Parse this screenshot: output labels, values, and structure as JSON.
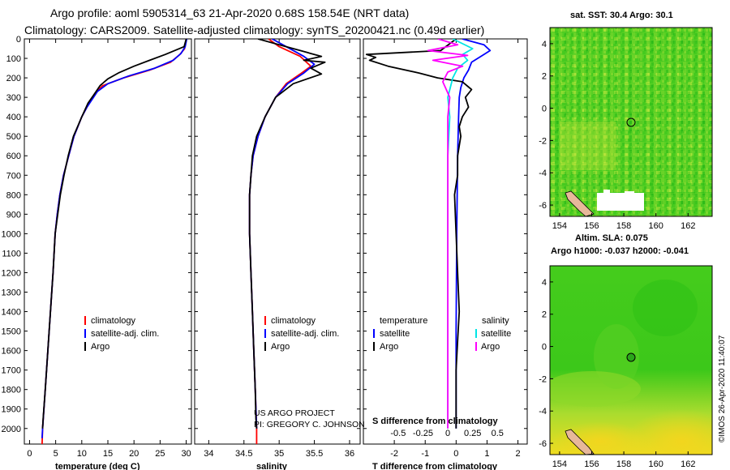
{
  "header": {
    "title_line1": "Argo profile: aoml 5905314_63 21-Apr-2020 0.68S 158.54E (NRT data)",
    "title_line2": "Climatology: CARS2009. Satellite-adjusted climatology: synTS_20200421.nc (0.49d earlier)"
  },
  "colors": {
    "climatology": "#ff0000",
    "satellite_adj": "#0000ff",
    "argo": "#000000",
    "sat_salinity": "#00e5e5",
    "argo_salinity_diff": "#ff00ff",
    "map_green": "#33cc1a",
    "map_yellow": "#f2ee24"
  },
  "chart_data": [
    {
      "id": "temperature",
      "type": "line",
      "xlabel": "temperature (deg C)",
      "ylabel": "",
      "xlim": [
        -1,
        31
      ],
      "ylim": [
        2080,
        0
      ],
      "xticks": [
        0,
        5,
        10,
        15,
        20,
        25,
        30
      ],
      "xtick_labels": [
        "0",
        "5",
        "10",
        "15",
        "20",
        "25",
        "30"
      ],
      "yticks": [
        0,
        100,
        200,
        300,
        400,
        500,
        600,
        700,
        800,
        900,
        1000,
        1100,
        1200,
        1300,
        1400,
        1500,
        1600,
        1700,
        1800,
        1900,
        2000
      ],
      "ytick_labels": [
        "0",
        "100",
        "200",
        "300",
        "400",
        "500",
        "600",
        "700",
        "800",
        "900",
        "1000",
        "1100",
        "1200",
        "1300",
        "1400",
        "1500",
        "1600",
        "1700",
        "1800",
        "1900",
        "2000"
      ],
      "legend": [
        "climatology",
        "satellite-adj. clim.",
        "Argo"
      ],
      "series": [
        {
          "name": "climatology",
          "color": "#ff0000",
          "points": [
            [
              30,
              0
            ],
            [
              29.7,
              50
            ],
            [
              28.8,
              80
            ],
            [
              27,
              120
            ],
            [
              23,
              160
            ],
            [
              18,
              200
            ],
            [
              14,
              240
            ],
            [
              12.5,
              280
            ],
            [
              11,
              350
            ],
            [
              10,
              400
            ],
            [
              8.5,
              500
            ],
            [
              7.5,
              600
            ],
            [
              6.5,
              700
            ],
            [
              5.8,
              800
            ],
            [
              5.3,
              900
            ],
            [
              4.9,
              1000
            ],
            [
              4.5,
              1200
            ],
            [
              4,
              1400
            ],
            [
              3.5,
              1600
            ],
            [
              3,
              1800
            ],
            [
              2.5,
              2000
            ],
            [
              2.4,
              2080
            ]
          ]
        },
        {
          "name": "satellite-adj. clim.",
          "color": "#0000ff",
          "points": [
            [
              30.1,
              0
            ],
            [
              29.8,
              40
            ],
            [
              29,
              75
            ],
            [
              27.5,
              110
            ],
            [
              24,
              150
            ],
            [
              19,
              190
            ],
            [
              15,
              230
            ],
            [
              13,
              270
            ],
            [
              11,
              350
            ],
            [
              10,
              400
            ],
            [
              8.5,
              500
            ],
            [
              7.5,
              600
            ],
            [
              6.5,
              700
            ],
            [
              5.8,
              800
            ],
            [
              5.3,
              900
            ],
            [
              4.9,
              1000
            ],
            [
              4.5,
              1200
            ],
            [
              4,
              1400
            ],
            [
              3.5,
              1600
            ],
            [
              3,
              1800
            ],
            [
              2.5,
              2000
            ],
            [
              2.4,
              2050
            ]
          ]
        },
        {
          "name": "Argo",
          "color": "#000000",
          "points": [
            [
              30,
              0
            ],
            [
              29.6,
              40
            ],
            [
              26,
              80
            ],
            [
              23,
              110
            ],
            [
              20,
              140
            ],
            [
              17,
              175
            ],
            [
              15,
              205
            ],
            [
              13.5,
              240
            ],
            [
              12.5,
              280
            ],
            [
              11.2,
              330
            ],
            [
              10,
              400
            ],
            [
              9.2,
              450
            ],
            [
              8.4,
              500
            ],
            [
              7.4,
              600
            ],
            [
              6.6,
              700
            ],
            [
              5.9,
              800
            ],
            [
              5.4,
              900
            ],
            [
              4.9,
              1000
            ],
            [
              4.5,
              1200
            ],
            [
              4,
              1400
            ],
            [
              3.5,
              1600
            ],
            [
              3,
              1800
            ],
            [
              2.6,
              1950
            ],
            [
              2.5,
              2000
            ]
          ]
        }
      ]
    },
    {
      "id": "salinity",
      "type": "line",
      "xlabel": "salinity",
      "xlim": [
        33.8,
        36.15
      ],
      "ylim": [
        2080,
        0
      ],
      "xticks": [
        34,
        34.5,
        35,
        35.5,
        36
      ],
      "xtick_labels": [
        "34",
        "34.5",
        "35",
        "35.5",
        "36"
      ],
      "legend": [
        "climatology",
        "satellite-adj. clim.",
        "Argo"
      ],
      "annotations": [
        "US ARGO PROJECT",
        "PI: GREGORY C. JOHNSON"
      ],
      "series": [
        {
          "name": "climatology",
          "color": "#ff0000",
          "points": [
            [
              34.85,
              0
            ],
            [
              35,
              40
            ],
            [
              35.3,
              90
            ],
            [
              35.45,
              140
            ],
            [
              35.3,
              180
            ],
            [
              35.1,
              230
            ],
            [
              34.95,
              300
            ],
            [
              34.8,
              400
            ],
            [
              34.7,
              500
            ],
            [
              34.63,
              600
            ],
            [
              34.6,
              700
            ],
            [
              34.58,
              800
            ],
            [
              34.58,
              1000
            ],
            [
              34.6,
              1200
            ],
            [
              34.62,
              1400
            ],
            [
              34.64,
              1600
            ],
            [
              34.66,
              1800
            ],
            [
              34.68,
              2000
            ],
            [
              34.68,
              2080
            ]
          ]
        },
        {
          "name": "satellite-adj. clim.",
          "color": "#0000ff",
          "points": [
            [
              34.9,
              0
            ],
            [
              35.1,
              40
            ],
            [
              35.35,
              90
            ],
            [
              35.5,
              130
            ],
            [
              35.35,
              175
            ],
            [
              35.12,
              230
            ],
            [
              34.95,
              300
            ],
            [
              34.8,
              400
            ],
            [
              34.7,
              500
            ],
            [
              34.63,
              600
            ],
            [
              34.6,
              700
            ],
            [
              34.58,
              800
            ],
            [
              34.58,
              1000
            ],
            [
              34.6,
              1200
            ],
            [
              34.62,
              1400
            ],
            [
              34.64,
              1600
            ],
            [
              34.66,
              1800
            ],
            [
              34.68,
              2000
            ]
          ]
        },
        {
          "name": "Argo",
          "color": "#000000",
          "points": [
            [
              34.7,
              0
            ],
            [
              35.1,
              40
            ],
            [
              35.4,
              70
            ],
            [
              35.6,
              90
            ],
            [
              35.35,
              110
            ],
            [
              35.65,
              120
            ],
            [
              35.45,
              150
            ],
            [
              35.6,
              180
            ],
            [
              35.2,
              230
            ],
            [
              34.95,
              300
            ],
            [
              34.8,
              400
            ],
            [
              34.68,
              500
            ],
            [
              34.62,
              600
            ],
            [
              34.6,
              700
            ],
            [
              34.58,
              800
            ],
            [
              34.58,
              1000
            ],
            [
              34.6,
              1200
            ],
            [
              34.62,
              1400
            ],
            [
              34.64,
              1600
            ],
            [
              34.66,
              1800
            ],
            [
              34.67,
              1950
            ],
            [
              34.68,
              2000
            ]
          ]
        }
      ]
    },
    {
      "id": "differences",
      "type": "line",
      "xlabel": "T difference from climatology",
      "xlim": [
        -3,
        2.3
      ],
      "ylim": [
        2080,
        0
      ],
      "xticks": [
        -2,
        -1,
        0,
        1,
        2
      ],
      "xtick_labels": [
        "-2",
        "-1",
        "0",
        "1",
        "2"
      ],
      "secondary_xaxis": {
        "label": "S difference from climatology",
        "xlim": [
          -0.85,
          0.8
        ],
        "xticks": [
          -0.5,
          -0.25,
          0,
          0.25,
          0.5
        ],
        "xtick_labels": [
          "-0.5",
          "-0.25",
          "0",
          "0.25",
          "0.5"
        ]
      },
      "legend_left": {
        "title": "temperature",
        "items": [
          "satellite",
          "Argo"
        ]
      },
      "legend_right": {
        "title": "salinity",
        "items": [
          "satellite",
          "Argo"
        ]
      },
      "series": [
        {
          "name": "temperature satellite",
          "color": "#0000ff",
          "points": [
            [
              0.2,
              0
            ],
            [
              0.9,
              30
            ],
            [
              1.1,
              60
            ],
            [
              0.8,
              90
            ],
            [
              0.5,
              120
            ],
            [
              0.4,
              160
            ],
            [
              0.25,
              200
            ],
            [
              0.15,
              250
            ],
            [
              0.1,
              300
            ],
            [
              0.08,
              400
            ],
            [
              0.05,
              600
            ],
            [
              0.02,
              1000
            ],
            [
              0,
              1500
            ],
            [
              0,
              2000
            ]
          ]
        },
        {
          "name": "temperature Argo",
          "color": "#000000",
          "points": [
            [
              0,
              0
            ],
            [
              -0.5,
              60
            ],
            [
              -2.9,
              80
            ],
            [
              -2.6,
              95
            ],
            [
              -2.8,
              110
            ],
            [
              -2.2,
              140
            ],
            [
              -1.2,
              175
            ],
            [
              -0.6,
              200
            ],
            [
              0.2,
              220
            ],
            [
              0.5,
              260
            ],
            [
              0.3,
              300
            ],
            [
              0.4,
              350
            ],
            [
              0.2,
              400
            ],
            [
              0.1,
              450
            ],
            [
              0.15,
              500
            ],
            [
              0.05,
              600
            ],
            [
              0.05,
              700
            ],
            [
              -0.05,
              800
            ],
            [
              0,
              1000
            ],
            [
              0.05,
              1200
            ],
            [
              0.1,
              1400
            ],
            [
              0.05,
              1550
            ],
            [
              0,
              1700
            ],
            [
              0,
              2000
            ]
          ]
        },
        {
          "name": "salinity satellite",
          "color": "#00e5e5",
          "points": [
            [
              0.05,
              0
            ],
            [
              0.25,
              50
            ],
            [
              0.15,
              80
            ],
            [
              0.2,
              110
            ],
            [
              0.1,
              150
            ],
            [
              0.05,
              200
            ],
            [
              0,
              300
            ],
            [
              0.02,
              400
            ],
            [
              0,
              600
            ],
            [
              0,
              1000
            ],
            [
              0,
              1500
            ],
            [
              0,
              2000
            ]
          ]
        },
        {
          "name": "salinity Argo",
          "color": "#ff00ff",
          "points": [
            [
              -0.1,
              0
            ],
            [
              0.1,
              30
            ],
            [
              -0.2,
              60
            ],
            [
              0.2,
              85
            ],
            [
              -0.15,
              110
            ],
            [
              0.15,
              140
            ],
            [
              0,
              170
            ],
            [
              -0.05,
              220
            ],
            [
              0.02,
              300
            ],
            [
              0,
              400
            ],
            [
              0,
              600
            ],
            [
              0,
              1000
            ],
            [
              0,
              1500
            ],
            [
              0,
              2000
            ]
          ]
        }
      ]
    }
  ],
  "maps": [
    {
      "id": "sst",
      "title": "sat. SST: 30.4 Argo: 30.1",
      "lon_ticks": [
        "154",
        "156",
        "158",
        "160",
        "162"
      ],
      "lat_ticks": [
        "4",
        "2",
        "0",
        "-2",
        "-4",
        "-6"
      ],
      "marker": {
        "lon": 158.54,
        "lat": -0.68
      }
    },
    {
      "id": "sla",
      "title": "Altim. SLA: 0.075",
      "subtitle": "Argo h1000: -0.037 h2000: -0.041",
      "lon_ticks": [
        "154",
        "156",
        "158",
        "160",
        "162"
      ],
      "lat_ticks": [
        "4",
        "2",
        "0",
        "-2",
        "-4",
        "-6"
      ],
      "marker": {
        "lon": 158.54,
        "lat": -0.68
      }
    }
  ],
  "credit": "©IMOS 26-Apr-2020 11:40:07"
}
